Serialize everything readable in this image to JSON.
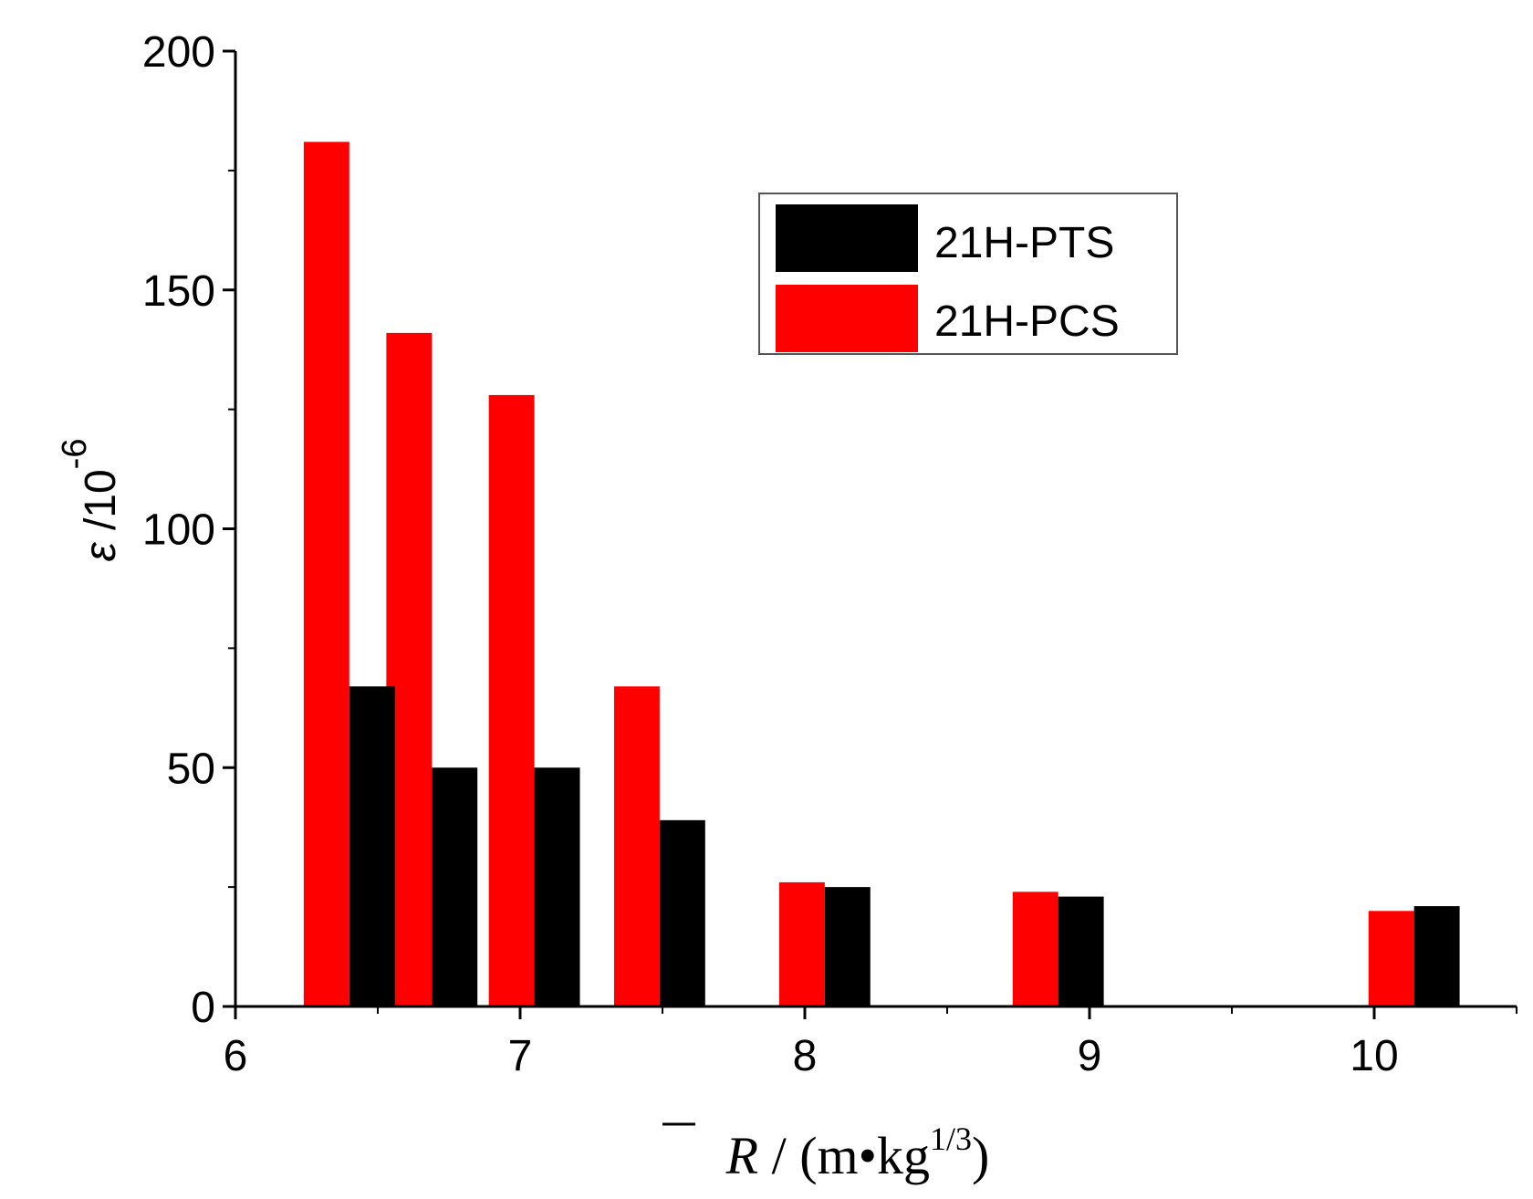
{
  "chart_data": {
    "type": "bar",
    "title": "",
    "xlabel": {
      "symbol": "R",
      "rest": " / (m•kg",
      "sup": "1/3",
      "close": ")"
    },
    "ylabel": {
      "symbol": "ε",
      "rest": " /10",
      "sup": "-6"
    },
    "xlim": [
      6,
      10.5
    ],
    "ylim": [
      0,
      200
    ],
    "xticks": [
      6,
      7,
      8,
      9,
      10
    ],
    "xtick_labels": [
      "6",
      "7",
      "8",
      "9",
      "10"
    ],
    "yticks": [
      0,
      50,
      100,
      150,
      200
    ],
    "ytick_labels": [
      "0",
      "50",
      "100",
      "150",
      "200"
    ],
    "bar_width": 0.16,
    "legend_position": "top-right",
    "series": [
      {
        "name": "21H-PTS",
        "color": "#000000",
        "x": [
          6.48,
          6.77,
          7.13,
          7.57,
          8.15,
          8.97,
          10.22
        ],
        "values": [
          67,
          50,
          50,
          39,
          25,
          23,
          21
        ]
      },
      {
        "name": "21H-PCS",
        "color": "#ff0000",
        "x": [
          6.32,
          6.61,
          6.97,
          7.41,
          7.99,
          8.81,
          10.06
        ],
        "values": [
          181,
          141,
          128,
          67,
          26,
          24,
          20
        ]
      }
    ]
  }
}
